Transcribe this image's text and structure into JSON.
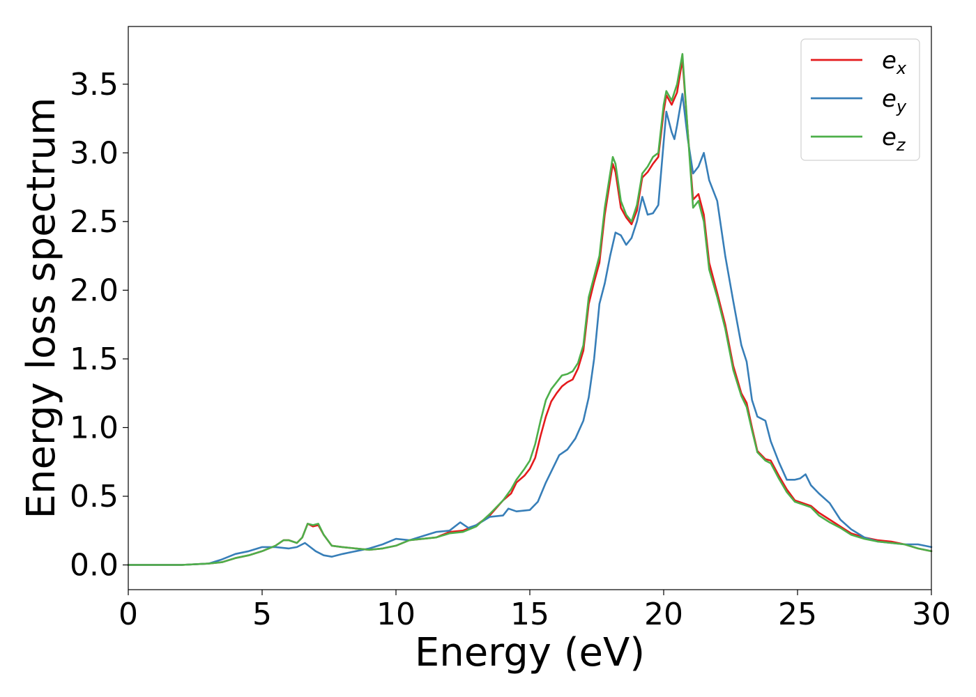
{
  "chart_data": {
    "type": "line",
    "title": "",
    "xlabel": "Energy (eV)",
    "ylabel": "Energy loss spectrum",
    "xlim": [
      0,
      30
    ],
    "ylim": [
      -0.18,
      3.92
    ],
    "xticks": [
      0,
      5,
      10,
      15,
      20,
      25,
      30
    ],
    "xtick_labels": [
      "0",
      "5",
      "10",
      "15",
      "20",
      "25",
      "30"
    ],
    "yticks": [
      0.0,
      0.5,
      1.0,
      1.5,
      2.0,
      2.5,
      3.0,
      3.5
    ],
    "ytick_labels": [
      "0.0",
      "0.5",
      "1.0",
      "1.5",
      "2.0",
      "2.5",
      "3.0",
      "3.5"
    ],
    "grid": false,
    "legend_position": "top-right",
    "series": [
      {
        "name": "e_x",
        "label_main": "e",
        "label_sub": "x",
        "color": "#e41a1c",
        "points": [
          [
            0,
            0.0
          ],
          [
            1,
            0.0
          ],
          [
            2,
            0.0
          ],
          [
            3,
            0.01
          ],
          [
            3.5,
            0.02
          ],
          [
            4,
            0.05
          ],
          [
            4.5,
            0.07
          ],
          [
            5,
            0.1
          ],
          [
            5.5,
            0.14
          ],
          [
            5.8,
            0.18
          ],
          [
            6,
            0.18
          ],
          [
            6.3,
            0.16
          ],
          [
            6.5,
            0.2
          ],
          [
            6.7,
            0.3
          ],
          [
            6.9,
            0.28
          ],
          [
            7.1,
            0.29
          ],
          [
            7.3,
            0.22
          ],
          [
            7.6,
            0.14
          ],
          [
            8,
            0.13
          ],
          [
            8.5,
            0.12
          ],
          [
            9,
            0.11
          ],
          [
            9.5,
            0.12
          ],
          [
            10,
            0.14
          ],
          [
            10.5,
            0.18
          ],
          [
            11,
            0.19
          ],
          [
            11.5,
            0.2
          ],
          [
            12,
            0.24
          ],
          [
            12.5,
            0.25
          ],
          [
            13,
            0.29
          ],
          [
            13.5,
            0.36
          ],
          [
            14,
            0.47
          ],
          [
            14.3,
            0.52
          ],
          [
            14.5,
            0.6
          ],
          [
            14.8,
            0.65
          ],
          [
            15,
            0.7
          ],
          [
            15.2,
            0.78
          ],
          [
            15.4,
            0.94
          ],
          [
            15.6,
            1.08
          ],
          [
            15.8,
            1.19
          ],
          [
            16,
            1.25
          ],
          [
            16.2,
            1.3
          ],
          [
            16.4,
            1.33
          ],
          [
            16.6,
            1.35
          ],
          [
            16.8,
            1.43
          ],
          [
            17,
            1.56
          ],
          [
            17.2,
            1.9
          ],
          [
            17.4,
            2.06
          ],
          [
            17.6,
            2.2
          ],
          [
            17.8,
            2.55
          ],
          [
            18,
            2.8
          ],
          [
            18.1,
            2.92
          ],
          [
            18.2,
            2.86
          ],
          [
            18.4,
            2.6
          ],
          [
            18.6,
            2.53
          ],
          [
            18.8,
            2.48
          ],
          [
            19,
            2.58
          ],
          [
            19.2,
            2.82
          ],
          [
            19.4,
            2.86
          ],
          [
            19.6,
            2.92
          ],
          [
            19.8,
            2.97
          ],
          [
            20,
            3.3
          ],
          [
            20.1,
            3.42
          ],
          [
            20.3,
            3.35
          ],
          [
            20.5,
            3.44
          ],
          [
            20.7,
            3.68
          ],
          [
            20.9,
            3.15
          ],
          [
            21.1,
            2.66
          ],
          [
            21.3,
            2.7
          ],
          [
            21.5,
            2.55
          ],
          [
            21.7,
            2.2
          ],
          [
            22,
            1.98
          ],
          [
            22.3,
            1.75
          ],
          [
            22.6,
            1.45
          ],
          [
            22.9,
            1.25
          ],
          [
            23.1,
            1.18
          ],
          [
            23.3,
            1.0
          ],
          [
            23.5,
            0.83
          ],
          [
            23.8,
            0.77
          ],
          [
            24,
            0.76
          ],
          [
            24.3,
            0.65
          ],
          [
            24.6,
            0.55
          ],
          [
            24.9,
            0.47
          ],
          [
            25.2,
            0.45
          ],
          [
            25.5,
            0.43
          ],
          [
            25.8,
            0.38
          ],
          [
            26.2,
            0.33
          ],
          [
            26.6,
            0.28
          ],
          [
            27,
            0.23
          ],
          [
            27.5,
            0.2
          ],
          [
            28,
            0.18
          ],
          [
            28.5,
            0.17
          ],
          [
            29,
            0.15
          ],
          [
            29.5,
            0.12
          ],
          [
            30,
            0.1
          ]
        ]
      },
      {
        "name": "e_y",
        "label_main": "e",
        "label_sub": "y",
        "color": "#377eb8",
        "points": [
          [
            0,
            0.0
          ],
          [
            1,
            0.0
          ],
          [
            2,
            0.0
          ],
          [
            3,
            0.01
          ],
          [
            3.5,
            0.04
          ],
          [
            4,
            0.08
          ],
          [
            4.5,
            0.1
          ],
          [
            5,
            0.13
          ],
          [
            5.5,
            0.13
          ],
          [
            6,
            0.12
          ],
          [
            6.3,
            0.13
          ],
          [
            6.6,
            0.16
          ],
          [
            6.8,
            0.13
          ],
          [
            7,
            0.1
          ],
          [
            7.3,
            0.07
          ],
          [
            7.6,
            0.06
          ],
          [
            8,
            0.08
          ],
          [
            8.5,
            0.1
          ],
          [
            9,
            0.12
          ],
          [
            9.5,
            0.15
          ],
          [
            10,
            0.19
          ],
          [
            10.5,
            0.18
          ],
          [
            11,
            0.21
          ],
          [
            11.5,
            0.24
          ],
          [
            12,
            0.25
          ],
          [
            12.4,
            0.31
          ],
          [
            12.7,
            0.27
          ],
          [
            13,
            0.29
          ],
          [
            13.5,
            0.35
          ],
          [
            14,
            0.36
          ],
          [
            14.2,
            0.41
          ],
          [
            14.5,
            0.39
          ],
          [
            15,
            0.4
          ],
          [
            15.3,
            0.46
          ],
          [
            15.6,
            0.6
          ],
          [
            15.9,
            0.72
          ],
          [
            16.1,
            0.8
          ],
          [
            16.4,
            0.84
          ],
          [
            16.7,
            0.92
          ],
          [
            17,
            1.05
          ],
          [
            17.2,
            1.22
          ],
          [
            17.4,
            1.5
          ],
          [
            17.6,
            1.9
          ],
          [
            17.8,
            2.05
          ],
          [
            18,
            2.25
          ],
          [
            18.2,
            2.42
          ],
          [
            18.4,
            2.4
          ],
          [
            18.6,
            2.33
          ],
          [
            18.8,
            2.38
          ],
          [
            19,
            2.5
          ],
          [
            19.2,
            2.68
          ],
          [
            19.4,
            2.55
          ],
          [
            19.6,
            2.56
          ],
          [
            19.8,
            2.62
          ],
          [
            20,
            3.08
          ],
          [
            20.1,
            3.3
          ],
          [
            20.3,
            3.15
          ],
          [
            20.4,
            3.1
          ],
          [
            20.5,
            3.2
          ],
          [
            20.7,
            3.43
          ],
          [
            20.9,
            3.1
          ],
          [
            21.1,
            2.85
          ],
          [
            21.3,
            2.9
          ],
          [
            21.5,
            3.0
          ],
          [
            21.7,
            2.8
          ],
          [
            22,
            2.65
          ],
          [
            22.3,
            2.25
          ],
          [
            22.6,
            1.92
          ],
          [
            22.9,
            1.6
          ],
          [
            23.1,
            1.48
          ],
          [
            23.3,
            1.2
          ],
          [
            23.5,
            1.08
          ],
          [
            23.8,
            1.05
          ],
          [
            24,
            0.9
          ],
          [
            24.3,
            0.75
          ],
          [
            24.6,
            0.62
          ],
          [
            24.9,
            0.62
          ],
          [
            25.1,
            0.63
          ],
          [
            25.3,
            0.66
          ],
          [
            25.5,
            0.58
          ],
          [
            25.8,
            0.52
          ],
          [
            26.2,
            0.45
          ],
          [
            26.6,
            0.33
          ],
          [
            27,
            0.26
          ],
          [
            27.5,
            0.2
          ],
          [
            28,
            0.17
          ],
          [
            28.5,
            0.16
          ],
          [
            29,
            0.15
          ],
          [
            29.5,
            0.15
          ],
          [
            30,
            0.13
          ]
        ]
      },
      {
        "name": "e_z",
        "label_main": "e",
        "label_sub": "z",
        "color": "#4daf4a",
        "points": [
          [
            0,
            0.0
          ],
          [
            1,
            0.0
          ],
          [
            2,
            0.0
          ],
          [
            3,
            0.01
          ],
          [
            3.5,
            0.02
          ],
          [
            4,
            0.05
          ],
          [
            4.5,
            0.07
          ],
          [
            5,
            0.1
          ],
          [
            5.5,
            0.14
          ],
          [
            5.8,
            0.18
          ],
          [
            6,
            0.18
          ],
          [
            6.3,
            0.16
          ],
          [
            6.5,
            0.2
          ],
          [
            6.7,
            0.3
          ],
          [
            6.9,
            0.29
          ],
          [
            7.1,
            0.3
          ],
          [
            7.3,
            0.22
          ],
          [
            7.6,
            0.14
          ],
          [
            8,
            0.13
          ],
          [
            8.5,
            0.12
          ],
          [
            9,
            0.11
          ],
          [
            9.5,
            0.12
          ],
          [
            10,
            0.14
          ],
          [
            10.5,
            0.18
          ],
          [
            11,
            0.19
          ],
          [
            11.5,
            0.2
          ],
          [
            12,
            0.23
          ],
          [
            12.5,
            0.24
          ],
          [
            13,
            0.28
          ],
          [
            13.5,
            0.37
          ],
          [
            14,
            0.47
          ],
          [
            14.3,
            0.55
          ],
          [
            14.5,
            0.62
          ],
          [
            14.8,
            0.7
          ],
          [
            15,
            0.76
          ],
          [
            15.2,
            0.88
          ],
          [
            15.4,
            1.05
          ],
          [
            15.6,
            1.2
          ],
          [
            15.8,
            1.28
          ],
          [
            16,
            1.33
          ],
          [
            16.2,
            1.38
          ],
          [
            16.4,
            1.39
          ],
          [
            16.6,
            1.41
          ],
          [
            16.8,
            1.47
          ],
          [
            17,
            1.6
          ],
          [
            17.2,
            1.95
          ],
          [
            17.4,
            2.1
          ],
          [
            17.6,
            2.25
          ],
          [
            17.8,
            2.6
          ],
          [
            18,
            2.85
          ],
          [
            18.1,
            2.97
          ],
          [
            18.2,
            2.92
          ],
          [
            18.4,
            2.65
          ],
          [
            18.6,
            2.55
          ],
          [
            18.8,
            2.5
          ],
          [
            19,
            2.62
          ],
          [
            19.2,
            2.85
          ],
          [
            19.4,
            2.9
          ],
          [
            19.6,
            2.97
          ],
          [
            19.8,
            3.0
          ],
          [
            20,
            3.35
          ],
          [
            20.1,
            3.45
          ],
          [
            20.3,
            3.38
          ],
          [
            20.5,
            3.5
          ],
          [
            20.7,
            3.72
          ],
          [
            20.9,
            3.15
          ],
          [
            21.1,
            2.6
          ],
          [
            21.3,
            2.65
          ],
          [
            21.5,
            2.5
          ],
          [
            21.7,
            2.15
          ],
          [
            22,
            1.95
          ],
          [
            22.3,
            1.72
          ],
          [
            22.6,
            1.42
          ],
          [
            22.9,
            1.23
          ],
          [
            23.1,
            1.15
          ],
          [
            23.3,
            0.98
          ],
          [
            23.5,
            0.82
          ],
          [
            23.8,
            0.76
          ],
          [
            24,
            0.74
          ],
          [
            24.3,
            0.63
          ],
          [
            24.6,
            0.53
          ],
          [
            24.9,
            0.46
          ],
          [
            25.2,
            0.44
          ],
          [
            25.5,
            0.42
          ],
          [
            25.8,
            0.36
          ],
          [
            26.2,
            0.31
          ],
          [
            26.6,
            0.27
          ],
          [
            27,
            0.22
          ],
          [
            27.5,
            0.19
          ],
          [
            28,
            0.17
          ],
          [
            28.5,
            0.16
          ],
          [
            29,
            0.15
          ],
          [
            29.5,
            0.12
          ],
          [
            30,
            0.1
          ]
        ]
      }
    ]
  }
}
